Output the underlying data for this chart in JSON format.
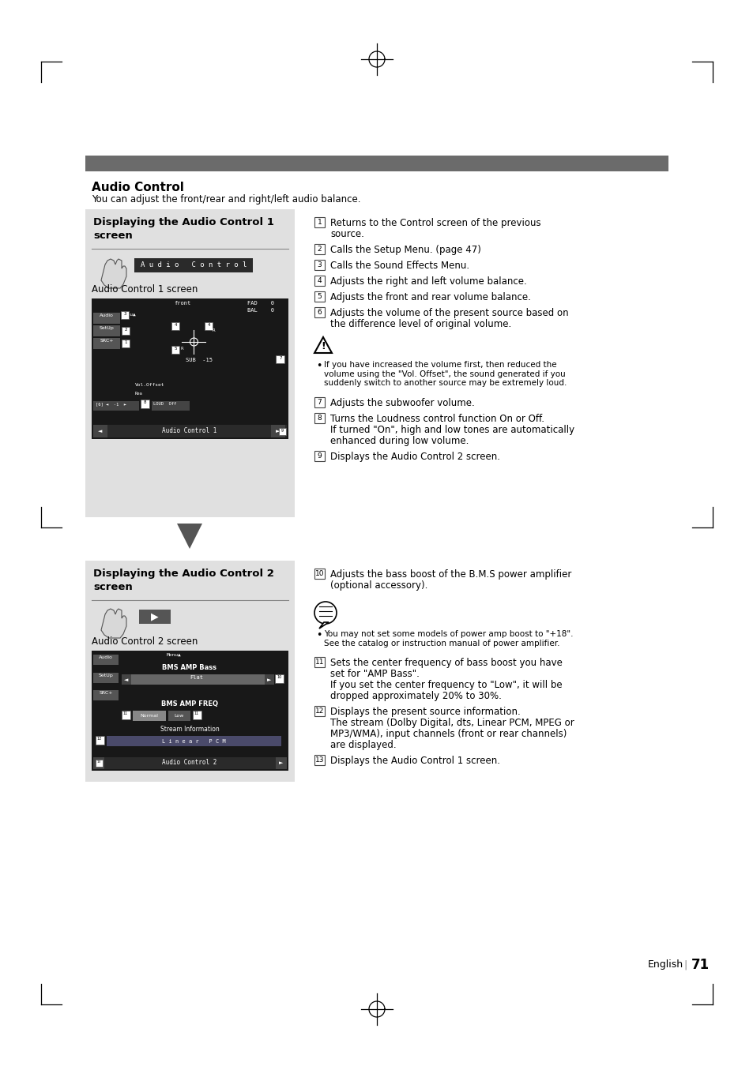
{
  "page_bg": "#ffffff",
  "header_bar_color": "#6b6b6b",
  "section_bg": "#e0e0e0",
  "title": "Audio Control",
  "subtitle": "You can adjust the front/rear and right/left audio balance.",
  "section1_title_line1": "Displaying the Audio Control 1",
  "section1_title_line2": "screen",
  "section2_title_line1": "Displaying the Audio Control 2",
  "section2_title_line2": "screen",
  "section1_caption": "Audio Control 1 screen",
  "section2_caption": "Audio Control 2 screen",
  "footer_text": "English",
  "page_number": "71",
  "right_items_1": [
    [
      "1",
      "Returns to the Control screen of the previous\nsource."
    ],
    [
      "2",
      "Calls the Setup Menu. (page 47)"
    ],
    [
      "3",
      "Calls the Sound Effects Menu."
    ],
    [
      "4",
      "Adjusts the right and left volume balance."
    ],
    [
      "5",
      "Adjusts the front and rear volume balance."
    ],
    [
      "6",
      "Adjusts the volume of the present source based on\nthe difference level of original volume."
    ]
  ],
  "warning_text": "If you have increased the volume first, then reduced the\nvolume using the \"Vol. Offset\", the sound generated if you\nsuddenly switch to another source may be extremely loud.",
  "right_items_2": [
    [
      "7",
      "Adjusts the subwoofer volume."
    ],
    [
      "8",
      "Turns the Loudness control function On or Off.\nIf turned \"On\", high and low tones are automatically\nenhanced during low volume."
    ],
    [
      "9",
      "Displays the Audio Control 2 screen."
    ]
  ],
  "right_items_3": [
    [
      "10",
      "Adjusts the bass boost of the B.M.S power amplifier\n(optional accessory)."
    ]
  ],
  "note_text": "You may not set some models of power amp boost to \"+18\".\nSee the catalog or instruction manual of power amplifier.",
  "right_items_4": [
    [
      "11",
      "Sets the center frequency of bass boost you have\nset for \"AMP Bass\".\nIf you set the center frequency to \"Low\", it will be\ndropped approximately 20% to 30%."
    ],
    [
      "12",
      "Displays the present source information.\nThe stream (Dolby Digital, dts, Linear PCM, MPEG or\nMP3/WMA), input channels (front or rear channels)\nare displayed."
    ],
    [
      "13",
      "Displays the Audio Control 1 screen."
    ]
  ]
}
